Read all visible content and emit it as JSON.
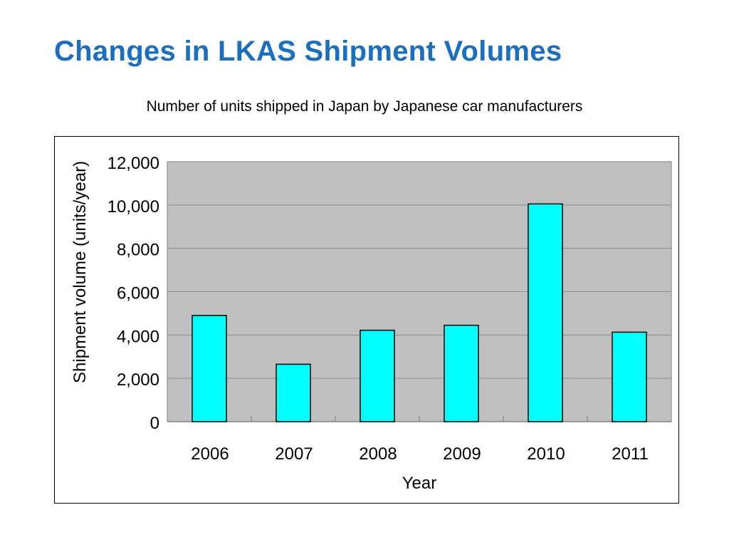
{
  "slide": {
    "title": "Changes in LKAS Shipment Volumes",
    "subtitle": "Number of units shipped in Japan by Japanese car manufacturers"
  },
  "colors": {
    "title": "#1a6fc0",
    "plot_background": "#c0c0c0",
    "bar_fill": "#00ffff",
    "bar_stroke": "#000000",
    "gridline": "#8c8c8c"
  },
  "chart_data": {
    "type": "bar",
    "categories": [
      "2006",
      "2007",
      "2008",
      "2009",
      "2010",
      "2011"
    ],
    "values": [
      4900,
      2650,
      4220,
      4450,
      10050,
      4130
    ],
    "xlabel": "Year",
    "ylabel": "Shipment volume (units/year)",
    "ylim": [
      0,
      12000
    ],
    "yticks": [
      0,
      2000,
      4000,
      6000,
      8000,
      10000,
      12000
    ],
    "ytick_labels": [
      "0",
      "2,000",
      "4,000",
      "6,000",
      "8,000",
      "10,000",
      "12,000"
    ],
    "grid": true,
    "legend": false
  }
}
